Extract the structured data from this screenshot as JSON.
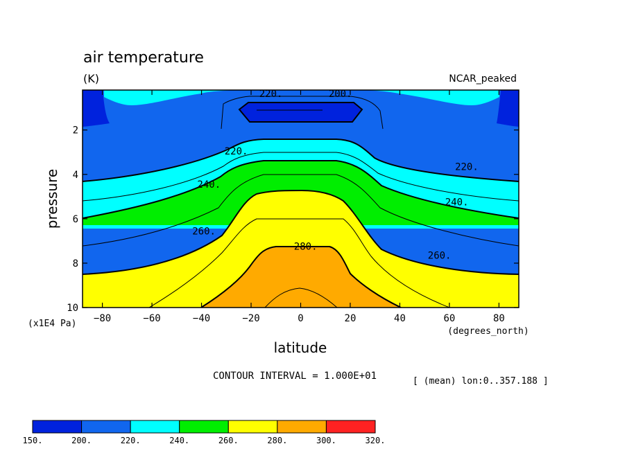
{
  "chart_data": {
    "type": "contour",
    "title": "air temperature",
    "units": "(K)",
    "dataset": "NCAR_peaked",
    "xlabel": "latitude",
    "xunits": "(degrees_north)",
    "ylabel": "pressure",
    "yunits": "(x1E4 Pa)",
    "xlim": [
      -88,
      88
    ],
    "ylim": [
      10,
      0.2
    ],
    "x_ticks": [
      -80,
      -60,
      -40,
      -20,
      0,
      20,
      40,
      60,
      80
    ],
    "x_tick_labels": [
      "−80",
      "−60",
      "−40",
      "−20",
      "0",
      "20",
      "40",
      "60",
      "80"
    ],
    "y_ticks": [
      2,
      4,
      6,
      8,
      10
    ],
    "y_tick_labels": [
      "2",
      "4",
      "6",
      "8",
      "10"
    ],
    "contour_interval_text": "CONTOUR INTERVAL = 1.000E+01",
    "mean_text": "[ (mean) lon:0..357.188 ]",
    "contour_labels": [
      {
        "text": "220.",
        "lat": -26,
        "p": 3.1
      },
      {
        "text": "220.",
        "lat": 67,
        "p": 3.8
      },
      {
        "text": "220.",
        "lat": -12,
        "p": 0.15
      },
      {
        "text": "200.",
        "lat": 16,
        "p": 0.5
      },
      {
        "text": "240.",
        "lat": -37,
        "p": 4.6
      },
      {
        "text": "240.",
        "lat": 63,
        "p": 5.4
      },
      {
        "text": "260.",
        "lat": -39,
        "p": 6.7
      },
      {
        "text": "260.",
        "lat": 56,
        "p": 7.8
      },
      {
        "text": "280.",
        "lat": 2,
        "p": 7.4
      }
    ],
    "colorbar": {
      "levels": [
        "150.",
        "200.",
        "220.",
        "240.",
        "260.",
        "280.",
        "300.",
        "320."
      ],
      "colors": [
        "#0022dd",
        "#1166ee",
        "#00ffff",
        "#00ee00",
        "#ffff00",
        "#ffaa00",
        "#ff2222"
      ]
    }
  }
}
